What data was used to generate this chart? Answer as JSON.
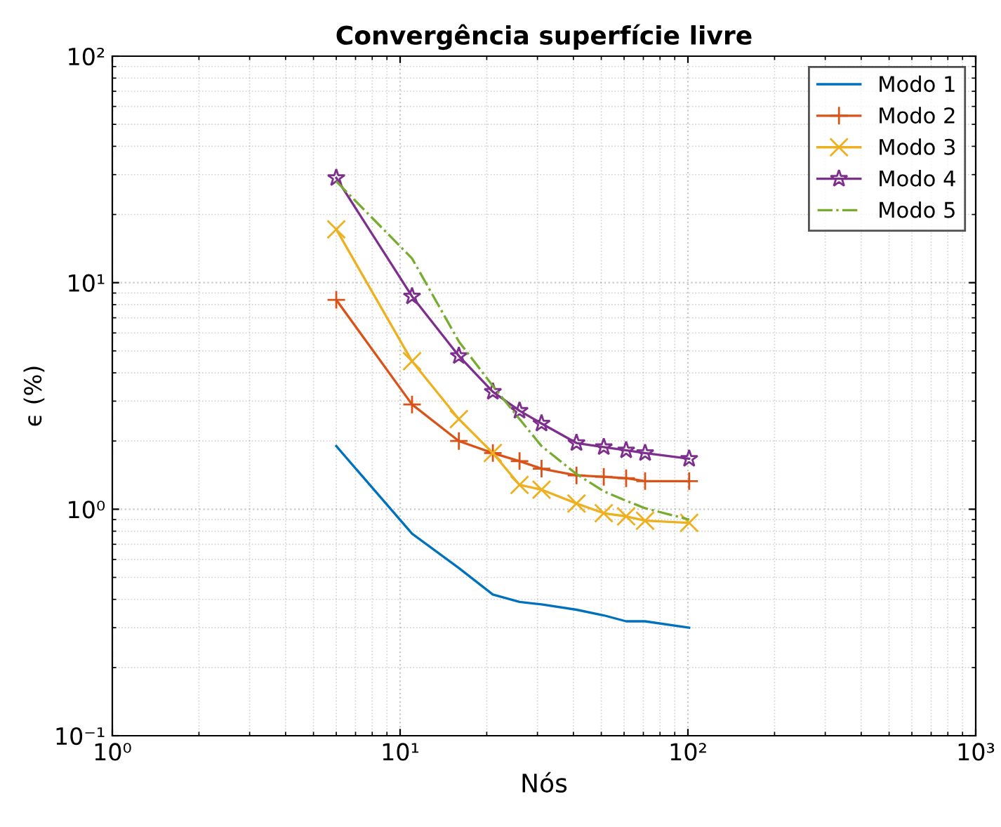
{
  "chart_data": {
    "type": "line",
    "title": "Convergência superfície livre",
    "xlabel": "Nós",
    "ylabel": "ϵ (%)",
    "x": [
      6,
      11,
      16,
      21,
      26,
      31,
      41,
      51,
      61,
      71,
      101
    ],
    "log": "xy",
    "grid": true,
    "legend": "top right",
    "xlim": [
      1,
      1000
    ],
    "xticks": [
      {
        "value": 1,
        "label": "10⁰"
      },
      {
        "value": 10,
        "label": "10¹"
      },
      {
        "value": 100,
        "label": "10²"
      },
      {
        "value": 1000,
        "label": "10³"
      }
    ],
    "ylim": [
      0.1,
      100
    ],
    "yticks": [
      {
        "value": 0.1,
        "label": "10⁻¹"
      },
      {
        "value": 1,
        "label": "10⁰"
      },
      {
        "value": 10,
        "label": "10¹"
      },
      {
        "value": 100,
        "label": "10²"
      }
    ],
    "series": [
      {
        "name": "Modo 1",
        "color": "#0072bd",
        "marker": "none",
        "line_style": "solid",
        "values": [
          1.9,
          0.78,
          0.55,
          0.42,
          0.39,
          0.38,
          0.36,
          0.34,
          0.32,
          0.32,
          0.3
        ]
      },
      {
        "name": "Modo 2",
        "color": "#d95319",
        "marker": "plus",
        "line_style": "solid",
        "values": [
          8.4,
          2.9,
          2.0,
          1.77,
          1.63,
          1.51,
          1.41,
          1.39,
          1.37,
          1.33,
          1.33
        ]
      },
      {
        "name": "Modo 3",
        "color": "#edb120",
        "marker": "cross",
        "line_style": "solid",
        "values": [
          17.2,
          4.5,
          2.5,
          1.77,
          1.28,
          1.22,
          1.06,
          0.96,
          0.93,
          0.89,
          0.87
        ]
      },
      {
        "name": "Modo 4",
        "color": "#7e2f8e",
        "marker": "star",
        "line_style": "solid",
        "values": [
          29,
          8.7,
          4.75,
          3.3,
          2.72,
          2.39,
          1.96,
          1.88,
          1.82,
          1.77,
          1.67
        ]
      },
      {
        "name": "Modo 5",
        "color": "#77ac30",
        "marker": "none",
        "line_style": "dashdot",
        "values": [
          28,
          12.8,
          5.5,
          3.5,
          2.5,
          1.9,
          1.43,
          1.2,
          1.09,
          1.01,
          0.9
        ]
      }
    ]
  }
}
